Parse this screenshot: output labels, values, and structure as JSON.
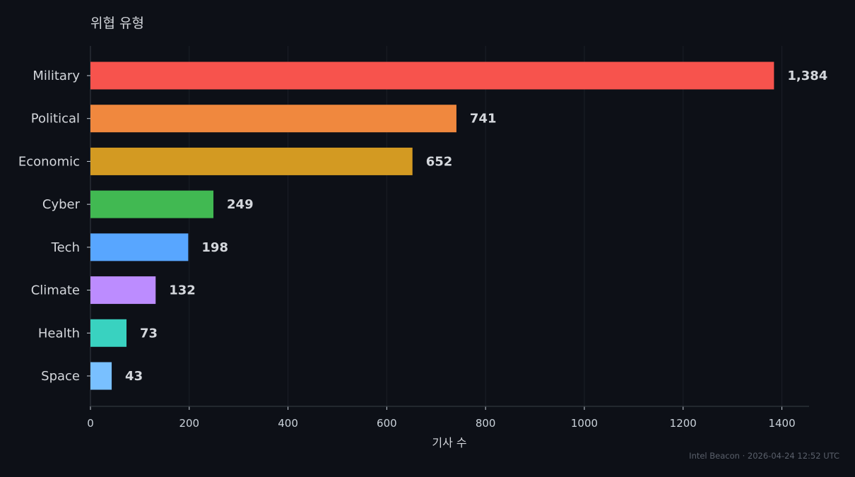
{
  "chart_data": {
    "type": "bar",
    "orientation": "horizontal",
    "title": "위협 유형",
    "xlabel": "기사 수",
    "ylabel": "",
    "categories": [
      "Military",
      "Political",
      "Economic",
      "Cyber",
      "Tech",
      "Climate",
      "Health",
      "Space"
    ],
    "values": [
      1384,
      741,
      652,
      249,
      198,
      132,
      73,
      43
    ],
    "value_labels": [
      "1,384",
      "741",
      "652",
      "249",
      "198",
      "132",
      "73",
      "43"
    ],
    "colors": [
      "#f7534d",
      "#f0883e",
      "#d39a22",
      "#41b952",
      "#58a6ff",
      "#bc8cff",
      "#39d2c0",
      "#79c0ff"
    ],
    "xlim": [
      0,
      1455
    ],
    "x_ticks": [
      0,
      200,
      400,
      600,
      800,
      1000,
      1200,
      1400
    ],
    "x_tick_labels": [
      "0",
      "200",
      "400",
      "600",
      "800",
      "1000",
      "1200",
      "1400"
    ],
    "grid": "vertical"
  },
  "footer": "Intel Beacon · 2026-04-24 12:52 UTC"
}
